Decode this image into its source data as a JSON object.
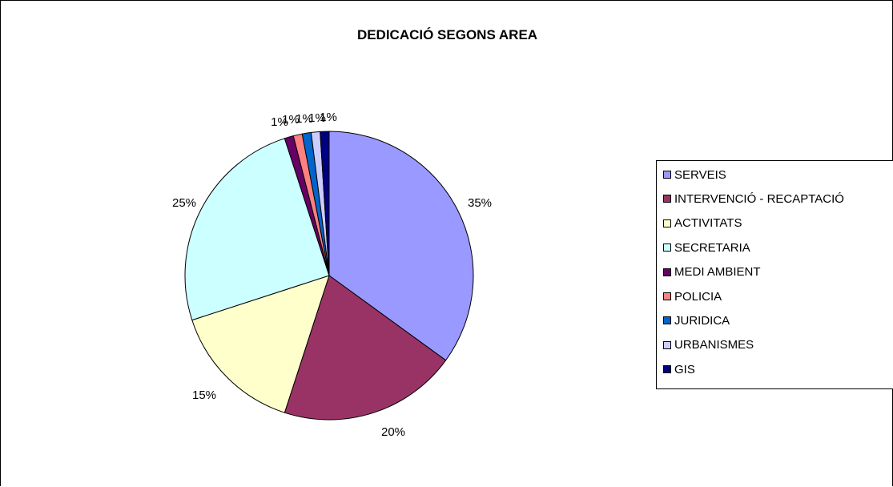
{
  "chart_data": {
    "type": "pie",
    "title": "DEDICACIÓ SEGONS AREA",
    "categories": [
      "SERVEIS",
      "INTERVENCIÓ - RECAPTACIÓ",
      "ACTIVITATS",
      "SECRETARIA",
      "MEDI AMBIENT",
      "POLICIA",
      "JURIDICA",
      "URBANISMES",
      "GIS"
    ],
    "values": [
      35,
      20,
      15,
      25,
      1,
      1,
      1,
      1,
      1
    ],
    "labels": [
      "35%",
      "20%",
      "15%",
      "25%",
      "1%",
      "1%",
      "1%",
      "1%",
      "1%"
    ],
    "colors": [
      "#9999ff",
      "#993366",
      "#ffffcc",
      "#ccffff",
      "#660066",
      "#ff8080",
      "#0066cc",
      "#ccccff",
      "#000080"
    ],
    "legend_position": "right"
  }
}
